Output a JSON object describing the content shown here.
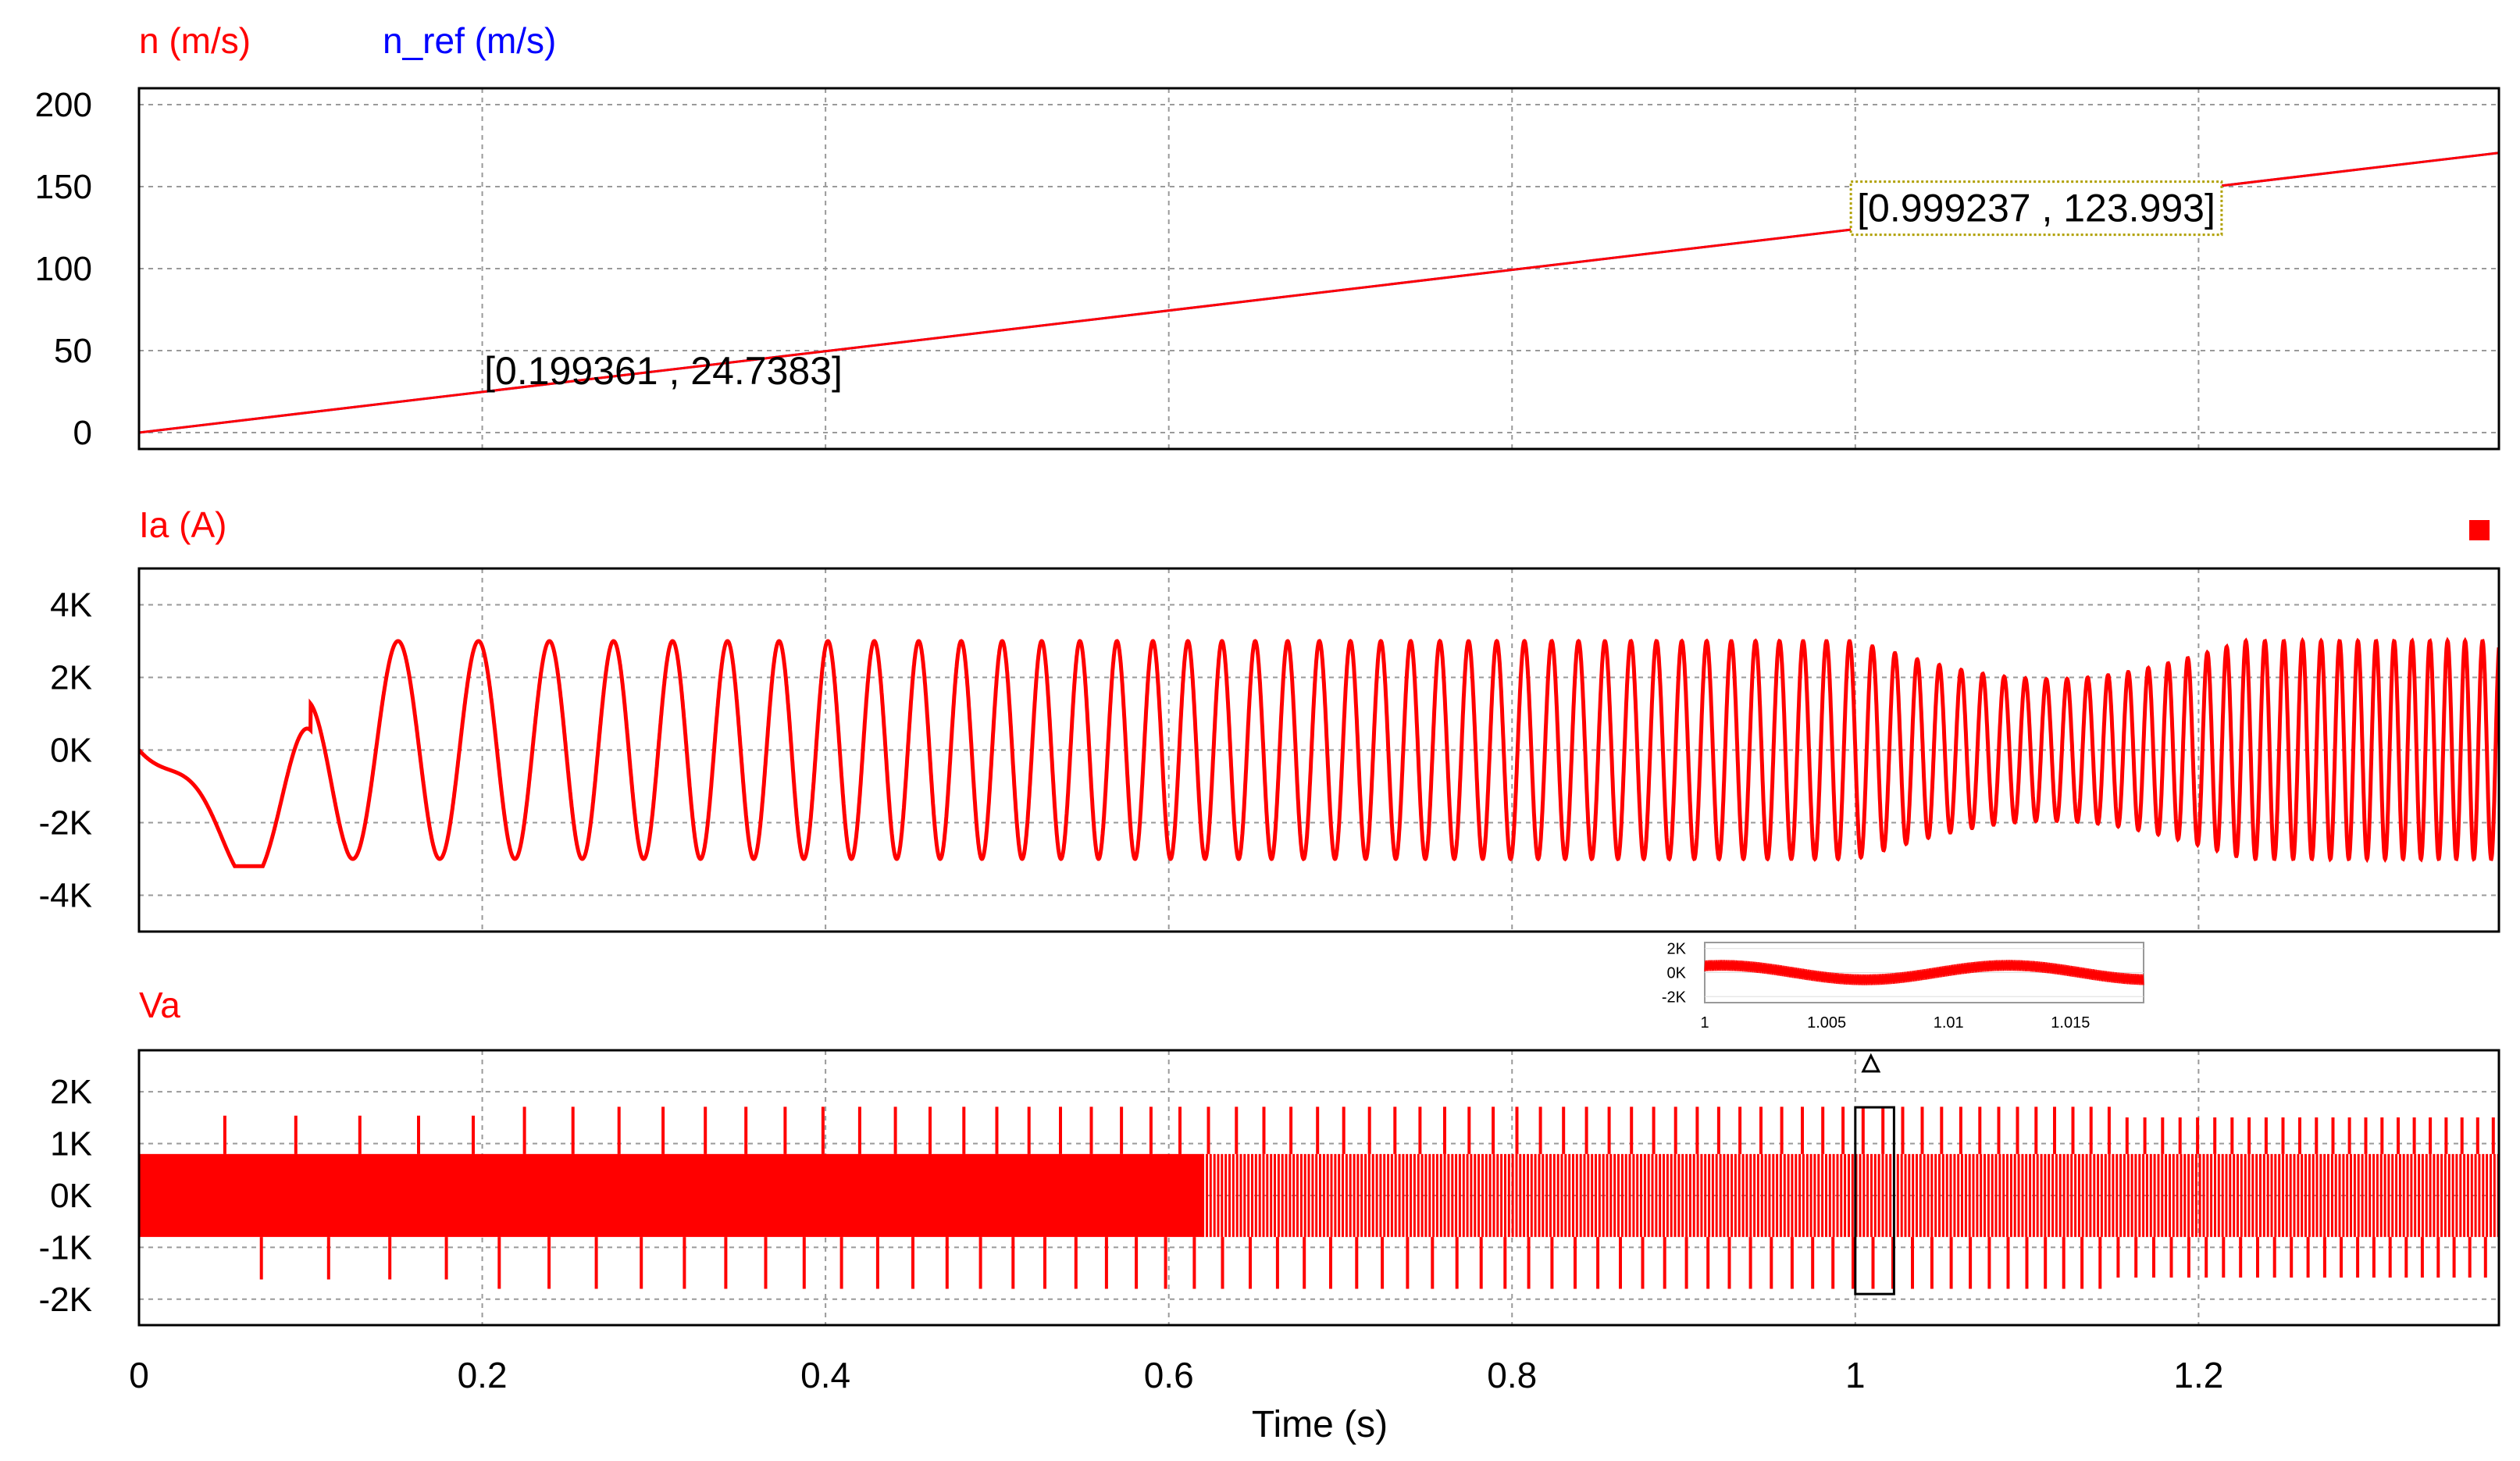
{
  "chart_data": {
    "type": "line",
    "xlabel": "Time (s)",
    "xlim": [
      0,
      1.375
    ],
    "x_ticks": [
      "0",
      "0.2",
      "0.4",
      "0.6",
      "0.8",
      "1",
      "1.2"
    ],
    "panels": [
      {
        "id": "speed",
        "series": [
          {
            "name": "n (m/s)",
            "color": "#ff0000",
            "x": [
              0,
              1.375
            ],
            "y": [
              0,
              170.6
            ]
          },
          {
            "name": "n_ref (m/s)",
            "color": "#0000ff",
            "x": [
              0,
              1.375
            ],
            "y": [
              0,
              170.6
            ]
          }
        ],
        "ylim": [
          -10,
          210
        ],
        "y_ticks": [
          "200",
          "150",
          "100",
          "50",
          "0"
        ],
        "annotations": [
          {
            "text": "[0.199361 , 24.7383]",
            "x": 0.199361,
            "y": 24.7383,
            "boxed": false
          },
          {
            "text": "[0.999237 , 123.993]",
            "x": 0.999237,
            "y": 123.993,
            "boxed": true
          }
        ]
      },
      {
        "id": "current",
        "series": [
          {
            "name": "Ia (A)",
            "color": "#ff0000",
            "description_values": {
              "steady_amplitude": 3000,
              "unit": "A"
            }
          }
        ],
        "ylim": [
          -5000,
          5000
        ],
        "y_ticks": [
          "4K",
          "2K",
          "0K",
          "-2K",
          "-4K"
        ],
        "legend_marker_color": "#ff0000"
      },
      {
        "id": "voltage",
        "series": [
          {
            "name": "Va",
            "color": "#ff0000",
            "description_values": {
              "band_low": -800,
              "band_high": 800,
              "pulse_peak": 1800
            }
          }
        ],
        "ylim": [
          -2500,
          2800
        ],
        "y_ticks": [
          "2K",
          "1K",
          "0K",
          "-1K",
          "-2K"
        ],
        "zoom_box": {
          "x_start": 1.0,
          "x_end": 1.018
        }
      }
    ],
    "inset": {
      "series_color": "#ff0000",
      "xlim": [
        1.0,
        1.018
      ],
      "x_ticks": [
        "1",
        "1.005",
        "1.01",
        "1.015"
      ],
      "ylim": [
        -2500,
        2500
      ],
      "y_ticks": [
        "2K",
        "0K",
        "-2K"
      ]
    }
  }
}
